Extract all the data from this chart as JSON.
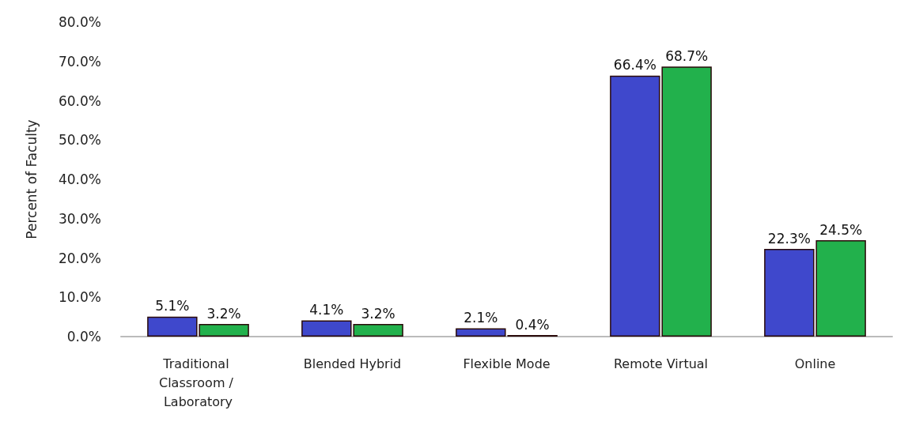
{
  "chart_data": {
    "type": "bar",
    "ylabel": "Percent of Faculty",
    "categories": [
      "Traditional Classroom / Laboratory",
      "Blended Hybrid",
      "Flexible Mode",
      "Remote Virtual",
      "Online"
    ],
    "series": [
      {
        "color": "#3f48cc",
        "values": [
          5.1,
          4.1,
          2.1,
          66.4,
          22.3
        ],
        "value_labels": [
          "5.1%",
          "4.1%",
          "2.1%",
          "66.4%",
          "22.3%"
        ]
      },
      {
        "color": "#22b14c",
        "values": [
          3.2,
          3.2,
          0.4,
          68.7,
          24.5
        ],
        "value_labels": [
          "3.2%",
          "3.2%",
          "0.4%",
          "68.7%",
          "24.5%"
        ]
      }
    ],
    "ylim": [
      0,
      80
    ],
    "yticks": [
      {
        "value": 0,
        "label": "0.0%"
      },
      {
        "value": 10,
        "label": "10.0%"
      },
      {
        "value": 20,
        "label": "20.0%"
      },
      {
        "value": 30,
        "label": "30.0%"
      },
      {
        "value": 40,
        "label": "40.0%"
      },
      {
        "value": 50,
        "label": "50.0%"
      },
      {
        "value": 60,
        "label": "60.0%"
      },
      {
        "value": 70,
        "label": "70.0%"
      },
      {
        "value": 80,
        "label": "80.0%"
      }
    ],
    "grid": false
  }
}
